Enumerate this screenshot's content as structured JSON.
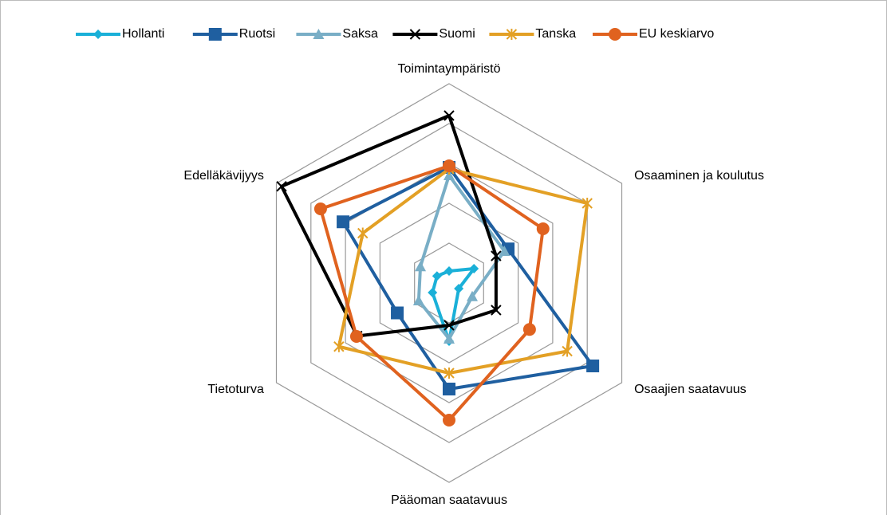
{
  "chart_data": {
    "type": "radar",
    "categories": [
      "Toimintaympäristö",
      "Osaaminen ja koulutus",
      "Osaajien saatavuus",
      "Pääoman saatavuus",
      "Tietoturva",
      "Edelläkävijyys"
    ],
    "series": [
      {
        "name": "Hollanti",
        "color": "#1ab0d8",
        "marker": "diamond",
        "values": [
          0.3,
          0.72,
          0.28,
          1.46,
          0.48,
          0.35
        ]
      },
      {
        "name": "Ruotsi",
        "color": "#1f5fa0",
        "marker": "square",
        "values": [
          2.9,
          1.71,
          4.16,
          2.66,
          1.5,
          3.07
        ]
      },
      {
        "name": "Saksa",
        "color": "#79aec6",
        "marker": "triangle",
        "values": [
          2.7,
          1.6,
          0.67,
          1.4,
          0.88,
          0.83
        ]
      },
      {
        "name": "Suomi",
        "color": "#000000",
        "marker": "x",
        "values": [
          4.2,
          1.36,
          1.36,
          1.06,
          2.66,
          4.85
        ]
      },
      {
        "name": "Tanska",
        "color": "#e3a025",
        "marker": "star",
        "values": [
          2.86,
          4.0,
          3.42,
          2.26,
          3.19,
          2.5
        ]
      },
      {
        "name": "EU keskiarvo",
        "color": "#e0621f",
        "marker": "circle",
        "values": [
          2.94,
          2.72,
          2.33,
          3.44,
          2.68,
          3.72
        ]
      }
    ],
    "ylim": [
      0,
      5
    ],
    "yticks": [
      1,
      2,
      3,
      4,
      5
    ],
    "grid": true,
    "legend": "top"
  }
}
